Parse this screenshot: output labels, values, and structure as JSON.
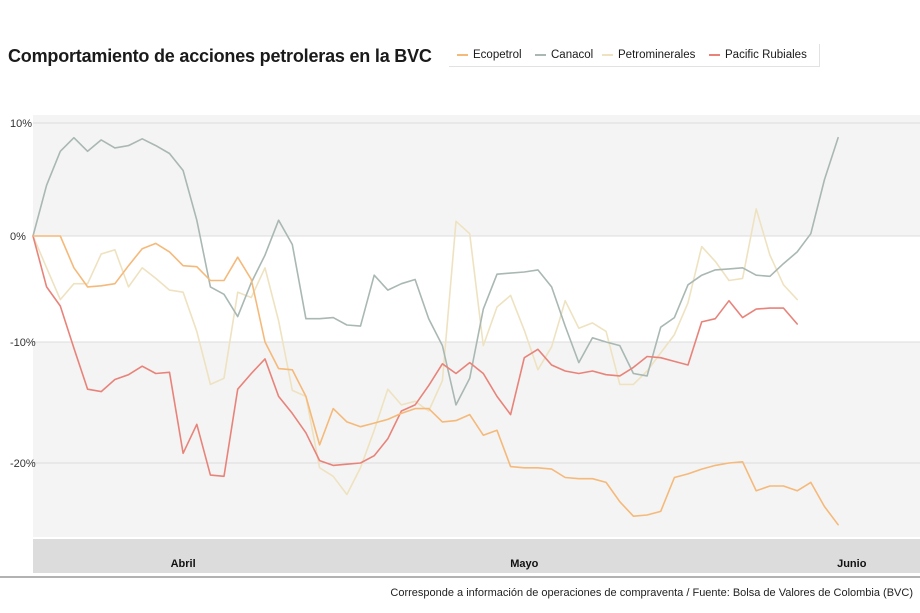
{
  "title": "Comportamiento de acciones petroleras en la BVC",
  "source": "Corresponde a información de operaciones de compraventa / Fuente: Bolsa de Valores de Colombia (BVC)",
  "colors": {
    "band": "#f4f4f4",
    "grid": "#dddddd",
    "axisbar": "#dcdcdc",
    "baseline": "#666666"
  },
  "chart_data": {
    "type": "line",
    "title": "Comportamiento de acciones petroleras en la BVC",
    "xlabel": "",
    "ylabel": "",
    "ylim": [
      -26,
      11
    ],
    "y_ticks": [
      10,
      0,
      -10,
      -20
    ],
    "y_tick_labels": [
      "10%",
      "0%",
      "-10%",
      "-20%"
    ],
    "x_range": [
      0,
      65
    ],
    "month_labels": [
      {
        "label": "Abril",
        "x": 11
      },
      {
        "label": "Mayo",
        "x": 36
      },
      {
        "label": "Junio",
        "x": 60
      }
    ],
    "legend_position": "top-right",
    "grid": true,
    "x": [
      0,
      1,
      2,
      3,
      4,
      5,
      6,
      7,
      8,
      9,
      10,
      11,
      12,
      13,
      14,
      15,
      16,
      17,
      18,
      19,
      20,
      21,
      22,
      23,
      24,
      25,
      26,
      27,
      28,
      29,
      30,
      31,
      32,
      33,
      34,
      35,
      36,
      37,
      38,
      39,
      40,
      41,
      42,
      43,
      44,
      45,
      46,
      47,
      48,
      49,
      50,
      51,
      52,
      53,
      54,
      55,
      56,
      57,
      58,
      59,
      60,
      61,
      62,
      63,
      64,
      65
    ],
    "series": [
      {
        "name": "Ecopetrol",
        "color": "#f5b97a",
        "values": [
          0,
          0,
          0,
          -3.0,
          -4.8,
          -4.7,
          -4.5,
          -2.8,
          -1.2,
          -0.7,
          -1.5,
          -2.8,
          -2.9,
          -4.2,
          -4.2,
          -2.0,
          -4.1,
          -10.0,
          -12.2,
          -12.3,
          -14.5,
          -18.5,
          -15.5,
          -16.6,
          -17.0,
          -16.7,
          -16.4,
          -15.9,
          -15.5,
          -15.5,
          -16.6,
          -16.5,
          -16.0,
          -17.7,
          -17.3,
          -20.3,
          -20.4,
          -20.4,
          -20.5,
          -21.2,
          -21.3,
          -21.3,
          -21.6,
          -23.2,
          -24.4,
          -24.3,
          -24.0,
          -21.2,
          -20.9,
          -20.5,
          -20.2,
          -20.0,
          -19.9,
          -22.3,
          -21.9,
          -21.9,
          -22.3,
          -21.6,
          -23.6,
          -25.1,
          null,
          null,
          null,
          null,
          null,
          null
        ]
      },
      {
        "name": "Canacol",
        "color": "#a9b8b3",
        "values": [
          0,
          4.5,
          7.5,
          8.7,
          7.5,
          8.5,
          7.8,
          8.0,
          8.6,
          8.0,
          7.3,
          5.8,
          1.4,
          -4.8,
          -5.5,
          -7.6,
          -4.4,
          -1.8,
          1.4,
          -0.8,
          -7.8,
          -7.8,
          -7.7,
          -8.4,
          -8.5,
          -3.7,
          -5.1,
          -4.5,
          -4.1,
          -7.8,
          -10.3,
          -15.2,
          -13.0,
          -6.9,
          -3.6,
          -3.5,
          -3.4,
          -3.2,
          -4.8,
          -8.5,
          -11.7,
          -9.6,
          -10.0,
          -10.3,
          -12.6,
          -12.8,
          -8.6,
          -7.7,
          -4.6,
          -3.7,
          -3.2,
          -3.1,
          -3.0,
          -3.7,
          -3.8,
          -2.6,
          -1.5,
          0.2,
          5.0,
          8.7,
          null,
          null,
          null,
          null,
          null,
          null
        ]
      },
      {
        "name": "Petrominerales",
        "color": "#eee2c0",
        "values": [
          0,
          -3.0,
          -6.0,
          -4.5,
          -4.5,
          -1.7,
          -1.3,
          -4.8,
          -3.0,
          -4.0,
          -5.1,
          -5.3,
          -9.0,
          -13.5,
          -13.0,
          -5.3,
          -5.8,
          -3.0,
          -8.0,
          -14.0,
          -14.5,
          -20.4,
          -21.1,
          -22.6,
          -20.4,
          -17.3,
          -13.9,
          -15.2,
          -14.9,
          -15.7,
          -13.2,
          1.3,
          0.2,
          -10.3,
          -6.7,
          -5.6,
          -8.9,
          -12.3,
          -10.4,
          -6.1,
          -8.7,
          -8.2,
          -9.0,
          -13.5,
          -13.5,
          -12.4,
          -10.9,
          -9.3,
          -6.3,
          -1.0,
          -2.4,
          -4.2,
          -4.0,
          2.4,
          -1.8,
          -4.6,
          -6.0,
          null,
          null,
          null,
          null,
          null,
          null,
          null,
          null,
          null
        ]
      },
      {
        "name": "Pacific Rubiales",
        "color": "#e8837a",
        "values": [
          0,
          -4.8,
          -6.6,
          -10.5,
          -13.9,
          -14.1,
          -13.1,
          -12.7,
          -12.0,
          -12.6,
          -12.5,
          -19.2,
          -16.8,
          -21.0,
          -21.1,
          -13.9,
          -12.6,
          -11.4,
          -14.5,
          -15.9,
          -17.5,
          -19.8,
          -20.2,
          -20.1,
          -20.0,
          -19.4,
          -18.0,
          -15.7,
          -15.2,
          -13.6,
          -11.8,
          -12.6,
          -11.7,
          -12.6,
          -14.5,
          -16.0,
          -11.3,
          -10.6,
          -11.9,
          -12.4,
          -12.6,
          -12.4,
          -12.7,
          -12.8,
          -12.1,
          -11.2,
          -11.3,
          -11.6,
          -11.9,
          -8.1,
          -7.8,
          -6.1,
          -7.7,
          -6.9,
          -6.8,
          -6.8,
          -8.3,
          null,
          null,
          null,
          null,
          null,
          null,
          null,
          null,
          null
        ]
      }
    ]
  }
}
